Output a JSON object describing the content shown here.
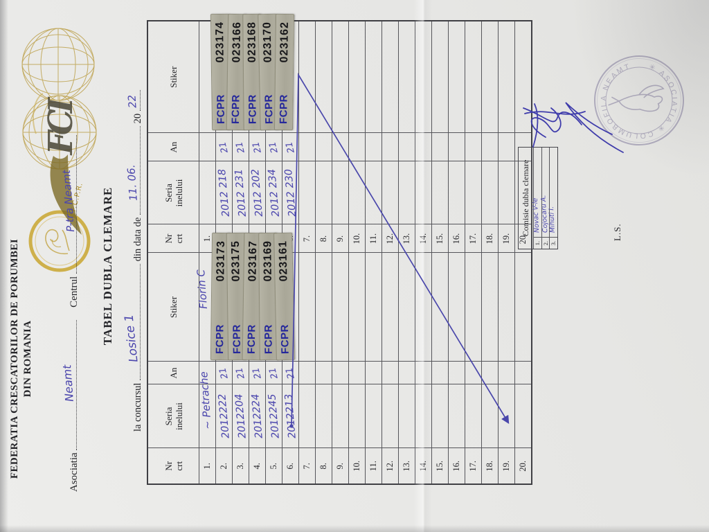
{
  "header": {
    "federation_line1": "FEDERATIA CRESCATORILOR DE PORUMBEI",
    "federation_line2": "DIN  ROMANIA",
    "emblem_monogram": "FCI",
    "fcpr_label": "F.C.P.R.",
    "association_label": "Asociatia",
    "association_value": "Neamt",
    "center_label": "Centrul",
    "center_value": "P-tra Neamt",
    "title": "TABEL DUBLA CLEMARE",
    "contest_label": "la concursul",
    "contest_value": "Losice 1",
    "date_label": "din data de",
    "date_value": "11. 06.",
    "year_prefix": "20",
    "year_value": "22"
  },
  "table": {
    "columns": [
      {
        "l1": "Nr",
        "l2": "crt"
      },
      {
        "l1": "Seria",
        "l2": "inelului"
      },
      {
        "l1": "An",
        "l2": ""
      },
      {
        "l1": "Stiker",
        "l2": ""
      }
    ],
    "tape_prefix": "FCPR",
    "row1_left_seria_note": "~ Petrache",
    "row1_left_stiker_note": "Florin C",
    "rows": [
      {
        "nr": "1.",
        "l_seria": "",
        "l_an": "",
        "l_tape": "",
        "r_seria": "",
        "r_an": "",
        "r_tape": ""
      },
      {
        "nr": "2.",
        "l_seria": "2012222",
        "l_an": "21",
        "l_tape": "023173",
        "r_seria": "2012 218",
        "r_an": "21",
        "r_tape": "023174"
      },
      {
        "nr": "3.",
        "l_seria": "2012204",
        "l_an": "21",
        "l_tape": "023175",
        "r_seria": "2012 231",
        "r_an": "21",
        "r_tape": "023166"
      },
      {
        "nr": "4.",
        "l_seria": "2012224",
        "l_an": "21",
        "l_tape": "023167",
        "r_seria": "2012 202",
        "r_an": "21",
        "r_tape": "023168"
      },
      {
        "nr": "5.",
        "l_seria": "2012245",
        "l_an": "21",
        "l_tape": "023169",
        "r_seria": "2012 234",
        "r_an": "21",
        "r_tape": "023170"
      },
      {
        "nr": "6.",
        "l_seria": "2012213",
        "l_an": "21",
        "l_tape": "023161",
        "r_seria": "2012 230",
        "r_an": "21",
        "r_tape": "023162"
      },
      {
        "nr": "7.",
        "l_seria": "",
        "l_an": "",
        "l_tape": "",
        "r_seria": "",
        "r_an": "",
        "r_tape": ""
      },
      {
        "nr": "8.",
        "l_seria": "",
        "l_an": "",
        "l_tape": "",
        "r_seria": "",
        "r_an": "",
        "r_tape": ""
      },
      {
        "nr": "9.",
        "l_seria": "",
        "l_an": "",
        "l_tape": "",
        "r_seria": "",
        "r_an": "",
        "r_tape": ""
      },
      {
        "nr": "10.",
        "l_seria": "",
        "l_an": "",
        "l_tape": "",
        "r_seria": "",
        "r_an": "",
        "r_tape": ""
      },
      {
        "nr": "11.",
        "l_seria": "",
        "l_an": "",
        "l_tape": "",
        "r_seria": "",
        "r_an": "",
        "r_tape": ""
      },
      {
        "nr": "12.",
        "l_seria": "",
        "l_an": "",
        "l_tape": "",
        "r_seria": "",
        "r_an": "",
        "r_tape": ""
      },
      {
        "nr": "13.",
        "l_seria": "",
        "l_an": "",
        "l_tape": "",
        "r_seria": "",
        "r_an": "",
        "r_tape": ""
      },
      {
        "nr": "14.",
        "l_seria": "",
        "l_an": "",
        "l_tape": "",
        "r_seria": "",
        "r_an": "",
        "r_tape": ""
      },
      {
        "nr": "15.",
        "l_seria": "",
        "l_an": "",
        "l_tape": "",
        "r_seria": "",
        "r_an": "",
        "r_tape": ""
      },
      {
        "nr": "16.",
        "l_seria": "",
        "l_an": "",
        "l_tape": "",
        "r_seria": "",
        "r_an": "",
        "r_tape": ""
      },
      {
        "nr": "17.",
        "l_seria": "",
        "l_an": "",
        "l_tape": "",
        "r_seria": "",
        "r_an": "",
        "r_tape": ""
      },
      {
        "nr": "18.",
        "l_seria": "",
        "l_an": "",
        "l_tape": "",
        "r_seria": "",
        "r_an": "",
        "r_tape": ""
      },
      {
        "nr": "19.",
        "l_seria": "",
        "l_an": "",
        "l_tape": "",
        "r_seria": "",
        "r_an": "",
        "r_tape": ""
      },
      {
        "nr": "20.",
        "l_seria": "",
        "l_an": "",
        "l_tape": "",
        "r_seria": "",
        "r_an": "",
        "r_tape": ""
      }
    ]
  },
  "comisie": {
    "title": "Comisie dubla clemare",
    "members": [
      {
        "nr": "1.",
        "name": "Novac V-le"
      },
      {
        "nr": "2.",
        "name": "Cojocaru A."
      },
      {
        "nr": "3.",
        "name": "Mihuti I."
      }
    ]
  },
  "ls_label": "L.S.",
  "stamp": {
    "arc_text": "✳ ASOCIATIA ✳ COLUMBOFILA NEAMT"
  }
}
